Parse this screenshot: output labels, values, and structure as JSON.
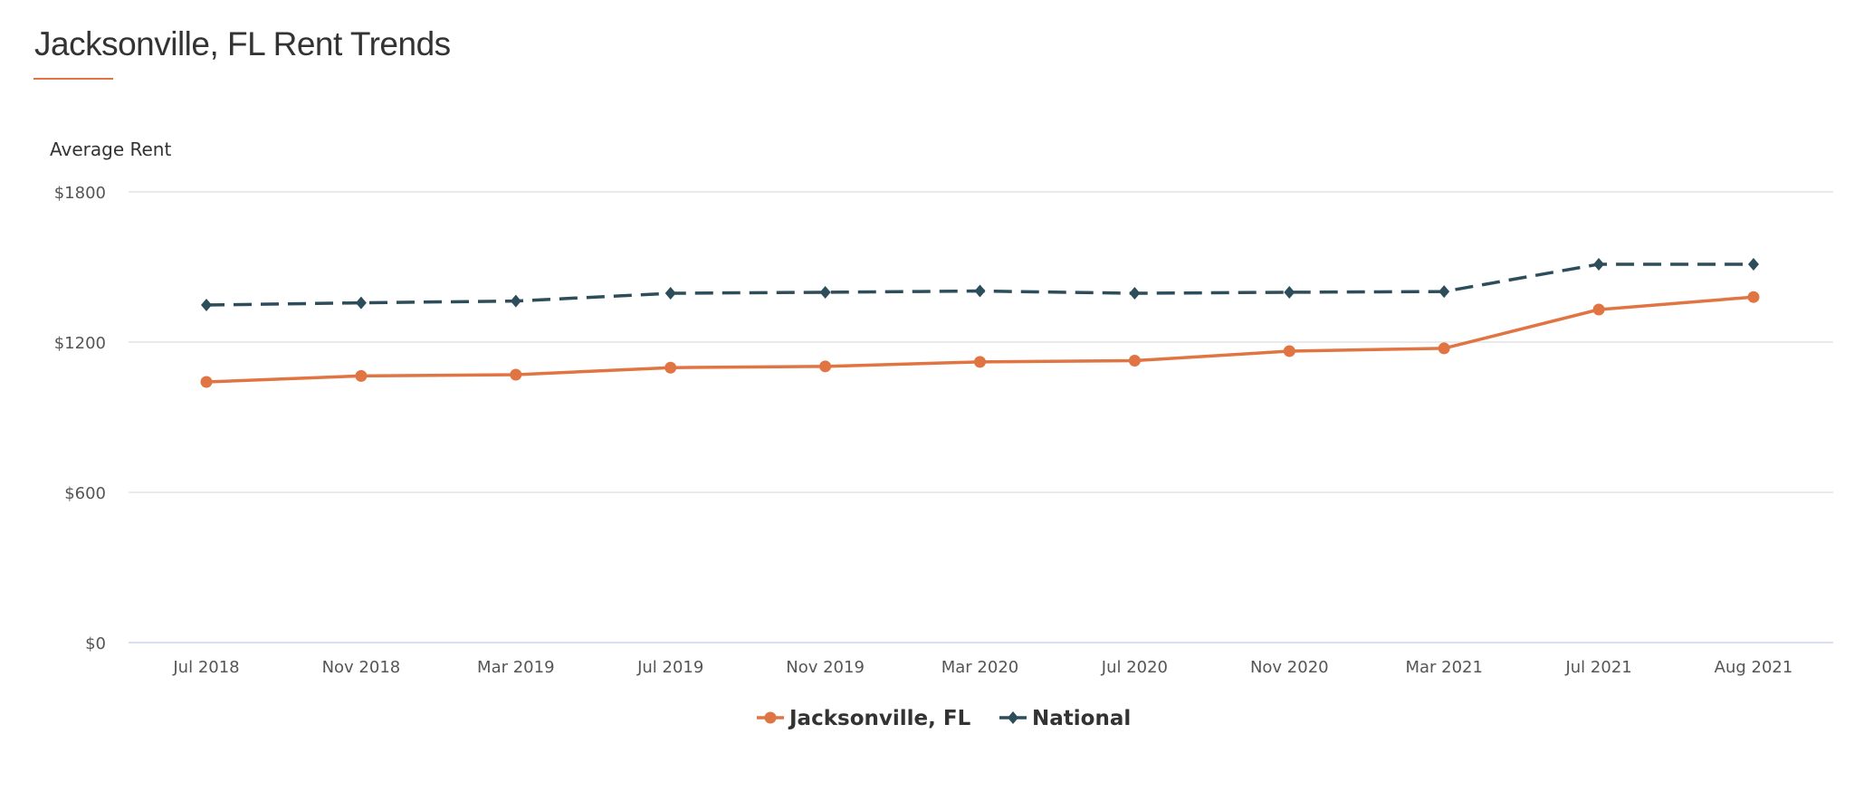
{
  "header": {
    "title": "Jacksonville, FL Rent Trends"
  },
  "colors": {
    "accent": "#e07443",
    "jacksonville": "#e07443",
    "national": "#2d4d5a",
    "grid": "#e3e3e3"
  },
  "chart_data": {
    "type": "line",
    "title": "",
    "xlabel": "",
    "ylabel": "Average Rent",
    "categories": [
      "Jul 2018",
      "Nov 2018",
      "Mar 2019",
      "Jul 2019",
      "Nov 2019",
      "Mar 2020",
      "Jul 2020",
      "Nov 2020",
      "Mar 2021",
      "Jul 2021",
      "Aug 2021"
    ],
    "ylim": [
      0,
      1800
    ],
    "yticks": [
      0,
      600,
      1200,
      1800
    ],
    "ytick_labels": [
      "$0",
      "$600",
      "$1200",
      "$1800"
    ],
    "grid": true,
    "legend_position": "bottom",
    "series": [
      {
        "name": "Jacksonville, FL",
        "marker": "circle",
        "line": "solid",
        "color": "#e07443",
        "values": [
          1041,
          1065,
          1070,
          1098,
          1103,
          1121,
          1126,
          1164,
          1175,
          1330,
          1380
        ]
      },
      {
        "name": "National",
        "marker": "diamond",
        "line": "dashed",
        "color": "#2d4d5a",
        "values": [
          1348,
          1357,
          1364,
          1395,
          1399,
          1404,
          1395,
          1399,
          1402,
          1511,
          1511
        ]
      }
    ]
  }
}
